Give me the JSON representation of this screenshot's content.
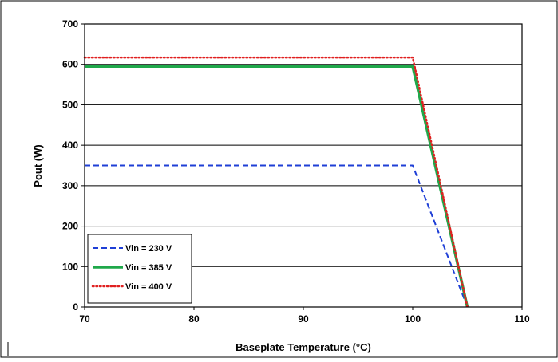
{
  "chart_data": {
    "type": "line",
    "xlabel": "Baseplate Temperature (°C)",
    "ylabel": "Pout (W)",
    "xlim": [
      70,
      110
    ],
    "ylim": [
      0,
      700
    ],
    "xticks": [
      "70",
      "80",
      "90",
      "100",
      "110"
    ],
    "yticks": [
      "0",
      "100",
      "200",
      "300",
      "400",
      "500",
      "600",
      "700"
    ],
    "grid": "horizontal",
    "legend_position": "bottom-left",
    "series": [
      {
        "name": "Vin = 230 V",
        "color": "#1f3fd6",
        "style": "dashed",
        "x": [
          70,
          100,
          105
        ],
        "y": [
          350,
          350,
          0
        ]
      },
      {
        "name": "Vin = 385 V",
        "color": "#1fa84a",
        "style": "solid",
        "x": [
          70,
          100,
          105
        ],
        "y": [
          595,
          595,
          0
        ]
      },
      {
        "name": "Vin = 400 V",
        "color": "#e02020",
        "style": "dotted",
        "x": [
          70,
          100,
          105
        ],
        "y": [
          617,
          617,
          0
        ]
      }
    ]
  }
}
